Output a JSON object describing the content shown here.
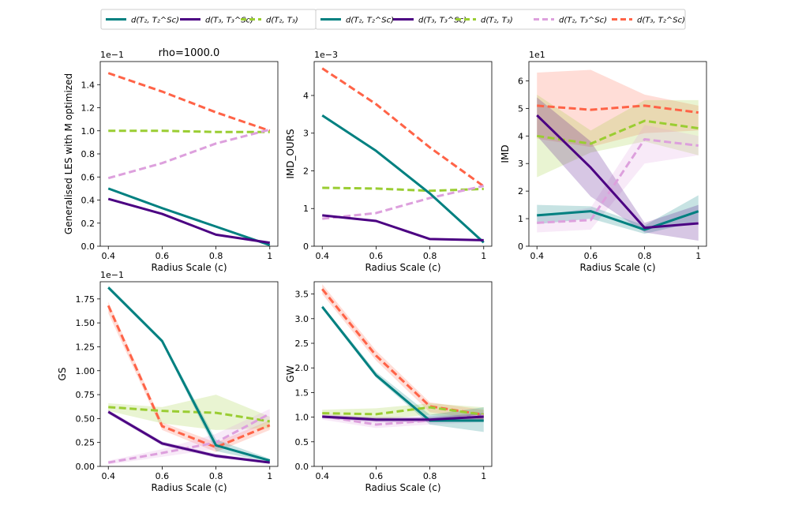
{
  "legend": {
    "items": [
      {
        "label": "d(T₂, T₂^Sc)",
        "color": "#008080",
        "style": "solid"
      },
      {
        "label": "d(T₃, T₃^Sc)",
        "color": "#4b0082",
        "style": "solid"
      },
      {
        "label": "d(T₂, T₃)",
        "color": "#9acd32",
        "style": "dashed"
      },
      {
        "label": "d(T₂, T₂^Sc)",
        "color": "#008080",
        "style": "solid"
      },
      {
        "label": "d(T₃, T₃^Sc)",
        "color": "#4b0082",
        "style": "solid"
      },
      {
        "label": "d(T₂, T₃)",
        "color": "#9acd32",
        "style": "dashed"
      },
      {
        "label": "d(T₂, T₃^Sc)",
        "color": "#dda0dd",
        "style": "dashed"
      },
      {
        "label": "d(T₃, T₂^Sc)",
        "color": "#ff6347",
        "style": "dashed"
      }
    ]
  },
  "chart_data": [
    {
      "type": "line",
      "title": "rho=1000.0",
      "ylabel": "Generalised LES with M optimized",
      "xlabel": "Radius Scale (c)",
      "multiplier": "1e−1",
      "x": [
        0.4,
        0.6,
        0.8,
        1
      ],
      "xticks": [
        "0.4",
        "0.6",
        "0.8",
        "1"
      ],
      "ylim": [
        0,
        1.6
      ],
      "yticks": [
        "0.0",
        "0.2",
        "0.4",
        "0.6",
        "0.8",
        "1.0",
        "1.2",
        "1.4"
      ],
      "yticks_values": [
        0,
        0.2,
        0.4,
        0.6,
        0.8,
        1.0,
        1.2,
        1.4
      ],
      "series": [
        {
          "name": "d(T₃, T₂^Sc)",
          "color": "#ff6347",
          "style": "dashed",
          "values": [
            1.5,
            1.34,
            1.16,
            1.0
          ]
        },
        {
          "name": "d(T₂, T₃)",
          "color": "#9acd32",
          "style": "dashed",
          "values": [
            1.0,
            1.0,
            0.99,
            0.99
          ]
        },
        {
          "name": "d(T₂, T₃^Sc)",
          "color": "#dda0dd",
          "style": "dashed",
          "values": [
            0.59,
            0.72,
            0.89,
            1.01
          ]
        },
        {
          "name": "d(T₂, T₂^Sc)",
          "color": "#008080",
          "style": "solid",
          "values": [
            0.5,
            0.33,
            0.17,
            0.01
          ]
        },
        {
          "name": "d(T₃, T₃^Sc)",
          "color": "#4b0082",
          "style": "solid",
          "values": [
            0.41,
            0.28,
            0.1,
            0.03
          ]
        }
      ]
    },
    {
      "type": "line",
      "title": "",
      "ylabel": "IMD_OURS",
      "xlabel": "Radius Scale (c)",
      "multiplier": "1e−3",
      "x": [
        0.4,
        0.6,
        0.8,
        1
      ],
      "xticks": [
        "0.4",
        "0.6",
        "0.8",
        "1"
      ],
      "ylim": [
        0,
        4.9
      ],
      "yticks": [
        "0",
        "1",
        "2",
        "3",
        "4"
      ],
      "yticks_values": [
        0,
        1,
        2,
        3,
        4
      ],
      "series": [
        {
          "name": "d(T₃, T₂^Sc)",
          "color": "#ff6347",
          "style": "dashed",
          "values": [
            4.72,
            3.77,
            2.62,
            1.59
          ]
        },
        {
          "name": "d(T₂, T₃)",
          "color": "#9acd32",
          "style": "dashed",
          "values": [
            1.55,
            1.53,
            1.47,
            1.52
          ]
        },
        {
          "name": "d(T₂, T₃^Sc)",
          "color": "#dda0dd",
          "style": "dashed",
          "values": [
            0.73,
            0.88,
            1.28,
            1.6
          ]
        },
        {
          "name": "d(T₂, T₂^Sc)",
          "color": "#008080",
          "style": "solid",
          "values": [
            3.47,
            2.53,
            1.4,
            0.1
          ]
        },
        {
          "name": "d(T₃, T₃^Sc)",
          "color": "#4b0082",
          "style": "solid",
          "values": [
            0.82,
            0.67,
            0.19,
            0.16
          ]
        }
      ]
    },
    {
      "type": "line",
      "title": "",
      "ylabel": "IMD",
      "xlabel": "Radius Scale (c)",
      "multiplier": "1e1",
      "x": [
        0.4,
        0.6,
        0.8,
        1
      ],
      "xticks": [
        "0.4",
        "0.6",
        "0.8",
        "1"
      ],
      "ylim": [
        0,
        6.7
      ],
      "yticks": [
        "0",
        "1",
        "2",
        "3",
        "4",
        "5",
        "6"
      ],
      "yticks_values": [
        0,
        1,
        2,
        3,
        4,
        5,
        6
      ],
      "series": [
        {
          "name": "d(T₃, T₂^Sc)",
          "color": "#ff6347",
          "style": "dashed",
          "values": [
            5.1,
            4.95,
            5.1,
            4.85
          ],
          "band_low": [
            3.9,
            3.6,
            4.1,
            4.2
          ],
          "band_high": [
            6.3,
            6.4,
            5.5,
            5.1
          ]
        },
        {
          "name": "d(T₂, T₃)",
          "color": "#9acd32",
          "style": "dashed",
          "values": [
            4.0,
            3.72,
            4.55,
            4.28
          ],
          "band_low": [
            2.5,
            3.4,
            3.8,
            3.3
          ],
          "band_high": [
            5.5,
            4.2,
            5.3,
            5.3
          ]
        },
        {
          "name": "d(T₂, T₃^Sc)",
          "color": "#dda0dd",
          "style": "dashed",
          "values": [
            0.85,
            0.95,
            3.88,
            3.65
          ],
          "band_low": [
            0.5,
            0.6,
            3.0,
            3.3
          ],
          "band_high": [
            1.1,
            1.4,
            4.4,
            4.0
          ]
        },
        {
          "name": "d(T₂, T₂^Sc)",
          "color": "#008080",
          "style": "solid",
          "values": [
            1.12,
            1.27,
            0.6,
            1.27
          ],
          "band_low": [
            0.8,
            1.0,
            0.45,
            0.9
          ],
          "band_high": [
            1.5,
            1.45,
            0.75,
            1.85
          ]
        },
        {
          "name": "d(T₃, T₃^Sc)",
          "color": "#4b0082",
          "style": "solid",
          "values": [
            4.75,
            2.85,
            0.67,
            0.83
          ],
          "band_low": [
            4.0,
            1.8,
            0.5,
            0.2
          ],
          "band_high": [
            5.4,
            3.8,
            0.85,
            1.5
          ]
        }
      ]
    },
    {
      "type": "line",
      "title": "",
      "ylabel": "GS",
      "xlabel": "Radius Scale (c)",
      "multiplier": "1e−1",
      "x": [
        0.4,
        0.6,
        0.8,
        1
      ],
      "xticks": [
        "0.4",
        "0.6",
        "0.8",
        "1"
      ],
      "ylim": [
        0,
        1.93
      ],
      "yticks": [
        "0.00",
        "0.25",
        "0.50",
        "0.75",
        "1.00",
        "1.25",
        "1.50",
        "1.75"
      ],
      "yticks_values": [
        0,
        0.25,
        0.5,
        0.75,
        1.0,
        1.25,
        1.5,
        1.75
      ],
      "series": [
        {
          "name": "d(T₃, T₂^Sc)",
          "color": "#ff6347",
          "style": "dashed",
          "values": [
            1.68,
            0.42,
            0.2,
            0.43
          ],
          "band_low": [
            1.6,
            0.38,
            0.15,
            0.38
          ],
          "band_high": [
            1.72,
            0.46,
            0.25,
            0.48
          ]
        },
        {
          "name": "d(T₂, T₃)",
          "color": "#9acd32",
          "style": "dashed",
          "values": [
            0.62,
            0.58,
            0.56,
            0.47
          ],
          "band_low": [
            0.58,
            0.45,
            0.38,
            0.4
          ],
          "band_high": [
            0.66,
            0.62,
            0.75,
            0.52
          ]
        },
        {
          "name": "d(T₂, T₃^Sc)",
          "color": "#dda0dd",
          "style": "dashed",
          "values": [
            0.04,
            0.14,
            0.25,
            0.55
          ],
          "band_low": [
            0.02,
            0.1,
            0.18,
            0.48
          ],
          "band_high": [
            0.06,
            0.18,
            0.34,
            0.6
          ]
        },
        {
          "name": "d(T₂, T₂^Sc)",
          "color": "#008080",
          "style": "solid",
          "values": [
            1.87,
            1.31,
            0.22,
            0.06
          ],
          "band_low": [
            1.85,
            1.29,
            0.16,
            0.04
          ],
          "band_high": [
            1.89,
            1.33,
            0.28,
            0.08
          ]
        },
        {
          "name": "d(T₃, T₃^Sc)",
          "color": "#4b0082",
          "style": "solid",
          "values": [
            0.57,
            0.24,
            0.11,
            0.04
          ],
          "band_low": [
            0.55,
            0.22,
            0.09,
            0.03
          ],
          "band_high": [
            0.59,
            0.26,
            0.13,
            0.05
          ]
        }
      ]
    },
    {
      "type": "line",
      "title": "",
      "ylabel": "GW",
      "xlabel": "Radius Scale (c)",
      "multiplier": "",
      "x": [
        0.4,
        0.6,
        0.8,
        1
      ],
      "xticks": [
        "0.4",
        "0.6",
        "0.8",
        "1"
      ],
      "ylim": [
        0,
        3.75
      ],
      "yticks": [
        "0.0",
        "0.5",
        "1.0",
        "1.5",
        "2.0",
        "2.5",
        "3.0",
        "3.5"
      ],
      "yticks_values": [
        0,
        0.5,
        1.0,
        1.5,
        2.0,
        2.5,
        3.0,
        3.5
      ],
      "series": [
        {
          "name": "d(T₃, T₂^Sc)",
          "color": "#ff6347",
          "style": "dashed",
          "values": [
            3.6,
            2.25,
            1.22,
            1.05
          ],
          "band_low": [
            3.5,
            2.15,
            1.1,
            0.95
          ],
          "band_high": [
            3.7,
            2.35,
            1.3,
            1.15
          ]
        },
        {
          "name": "d(T₂, T₃)",
          "color": "#9acd32",
          "style": "dashed",
          "values": [
            1.08,
            1.06,
            1.2,
            1.05
          ],
          "band_low": [
            1.0,
            0.95,
            1.05,
            0.9
          ],
          "band_high": [
            1.15,
            1.18,
            1.28,
            1.2
          ]
        },
        {
          "name": "d(T₂, T₃^Sc)",
          "color": "#dda0dd",
          "style": "dashed",
          "values": [
            1.02,
            0.85,
            0.93,
            1.03
          ],
          "band_low": [
            0.95,
            0.78,
            0.85,
            0.9
          ],
          "band_high": [
            1.1,
            0.95,
            1.02,
            1.1
          ]
        },
        {
          "name": "d(T₂, T₂^Sc)",
          "color": "#008080",
          "style": "solid",
          "values": [
            3.24,
            1.85,
            0.93,
            0.93
          ],
          "band_low": [
            3.2,
            1.8,
            0.85,
            0.7
          ],
          "band_high": [
            3.28,
            1.92,
            1.05,
            1.2
          ]
        },
        {
          "name": "d(T₃, T₃^Sc)",
          "color": "#4b0082",
          "style": "solid",
          "values": [
            1.01,
            0.95,
            0.95,
            1.01
          ],
          "band_low": [
            0.98,
            0.9,
            0.9,
            0.92
          ],
          "band_high": [
            1.04,
            1.0,
            1.0,
            1.08
          ]
        }
      ]
    }
  ]
}
